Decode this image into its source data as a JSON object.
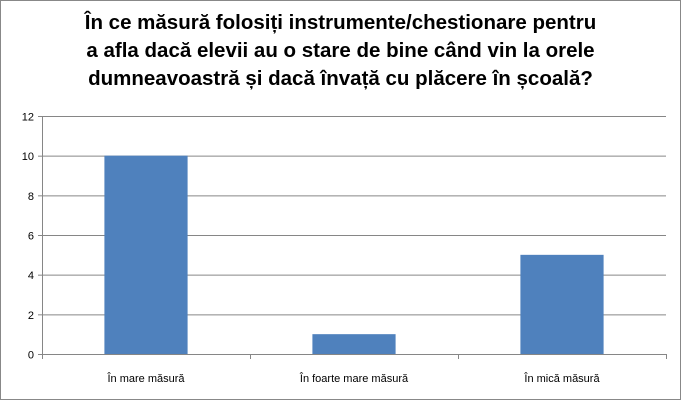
{
  "chart_data": {
    "type": "bar",
    "title_lines": [
      "În ce măsură folosiți instrumente/chestionare pentru",
      "a afla dacă elevii au o stare de bine când vin la orele",
      "dumneavoastră și dacă învață cu plăcere în școală?"
    ],
    "categories": [
      "În mare măsură",
      "În foarte mare măsură",
      "În mică măsură"
    ],
    "values": [
      10,
      1,
      5
    ],
    "ylim": [
      0,
      12
    ],
    "yticks": [
      0,
      2,
      4,
      6,
      8,
      10,
      12
    ],
    "grid": true,
    "legend": "none",
    "bar_color": "#4F81BD"
  }
}
